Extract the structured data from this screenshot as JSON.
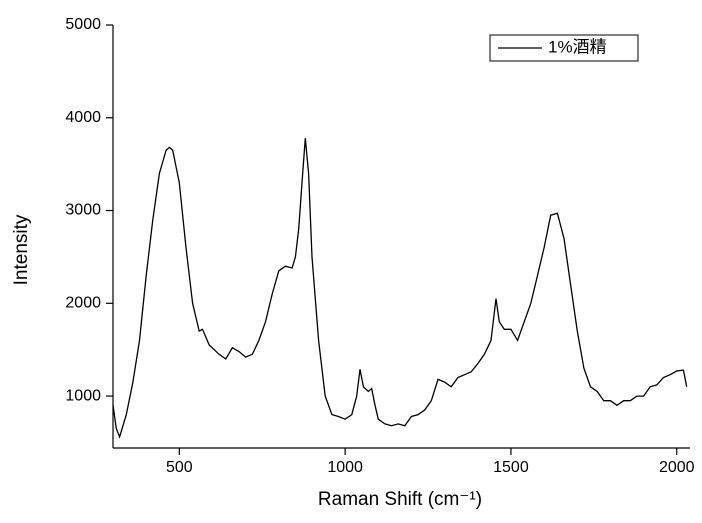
{
  "chart_data": {
    "type": "line",
    "x_label": "Raman Shift (cm⁻¹)",
    "y_label": "Intensity",
    "xlim": [
      300,
      2040
    ],
    "xticks": [
      500,
      1000,
      1500,
      2000
    ],
    "ylim": [
      440,
      5000
    ],
    "yticks": [
      1000,
      2000,
      3000,
      4000,
      5000
    ],
    "x": [
      300,
      310,
      320,
      340,
      360,
      380,
      400,
      420,
      440,
      460,
      470,
      480,
      500,
      520,
      540,
      560,
      570,
      590,
      620,
      640,
      660,
      680,
      700,
      720,
      740,
      760,
      780,
      800,
      820,
      840,
      850,
      860,
      870,
      880,
      890,
      900,
      920,
      940,
      960,
      980,
      1000,
      1020,
      1035,
      1045,
      1055,
      1070,
      1080,
      1090,
      1100,
      1120,
      1140,
      1160,
      1180,
      1200,
      1220,
      1240,
      1260,
      1280,
      1300,
      1320,
      1340,
      1360,
      1380,
      1400,
      1420,
      1440,
      1455,
      1465,
      1480,
      1500,
      1520,
      1540,
      1560,
      1580,
      1600,
      1620,
      1640,
      1660,
      1680,
      1700,
      1720,
      1740,
      1760,
      1780,
      1800,
      1820,
      1840,
      1860,
      1880,
      1900,
      1920,
      1940,
      1960,
      1980,
      2000,
      2020,
      2030
    ],
    "series": [
      {
        "name": "1%酒精",
        "color": "#000000",
        "values": [
          900,
          650,
          560,
          800,
          1150,
          1600,
          2300,
          2900,
          3400,
          3650,
          3680,
          3650,
          3300,
          2600,
          2000,
          1700,
          1720,
          1550,
          1450,
          1400,
          1520,
          1480,
          1420,
          1450,
          1600,
          1800,
          2100,
          2350,
          2400,
          2380,
          2500,
          2800,
          3300,
          3780,
          3400,
          2500,
          1600,
          1000,
          800,
          780,
          750,
          800,
          1000,
          1290,
          1100,
          1050,
          1080,
          900,
          750,
          700,
          680,
          700,
          680,
          780,
          800,
          850,
          950,
          1180,
          1150,
          1100,
          1200,
          1230,
          1260,
          1350,
          1450,
          1600,
          2050,
          1800,
          1720,
          1720,
          1600,
          1800,
          2000,
          2300,
          2600,
          2950,
          2970,
          2700,
          2200,
          1700,
          1300,
          1100,
          1050,
          950,
          950,
          900,
          950,
          950,
          1000,
          1000,
          1100,
          1120,
          1200,
          1230,
          1270,
          1280,
          1100
        ]
      }
    ],
    "legend": "top-right"
  }
}
